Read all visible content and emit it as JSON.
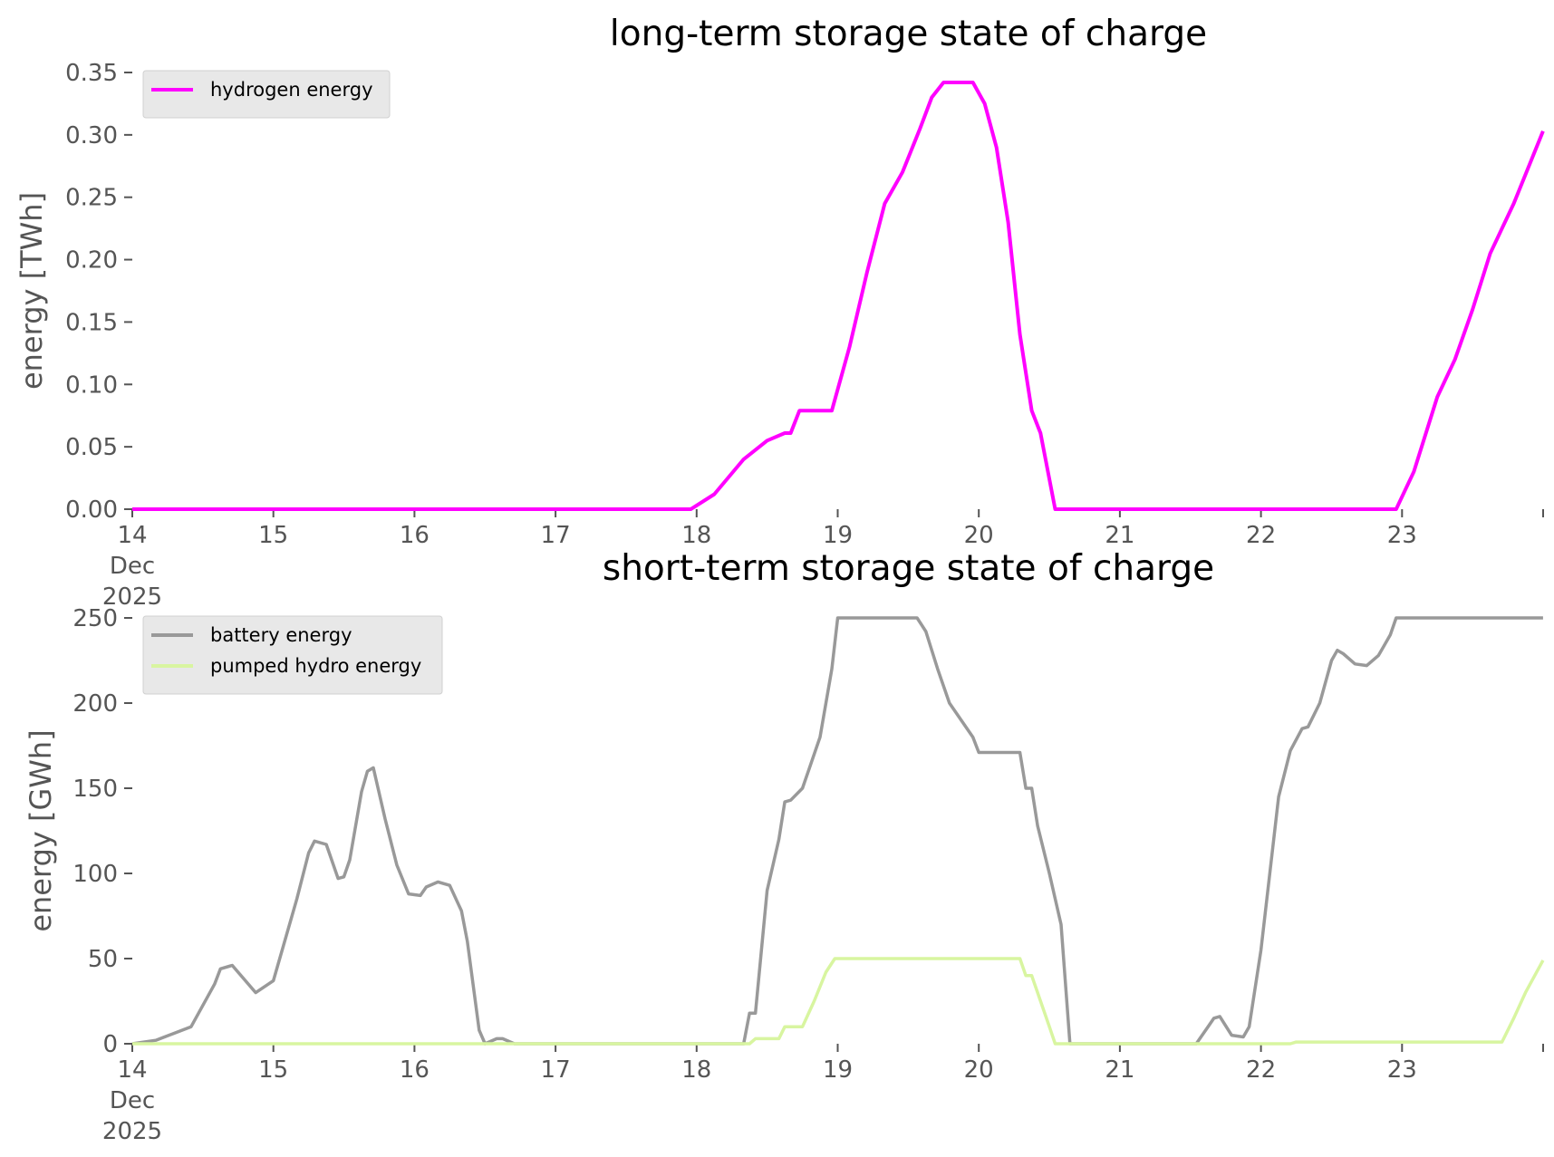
{
  "colors": {
    "hydrogen": "#ff00ff",
    "battery": "#999999",
    "pumped_hydro": "#d8f5a0",
    "axis": "#555555",
    "legend_bg": "#e8e8e8"
  },
  "chart_data": [
    {
      "type": "line",
      "title": "long-term storage state of charge",
      "ylabel": "energy [TWh]",
      "xlabel": "",
      "xlim": [
        "2025-12-14",
        "2025-12-24"
      ],
      "ylim": [
        0,
        0.35
      ],
      "grid": false,
      "legend_position": "top-left",
      "x_tick_labels": [
        "14",
        "15",
        "16",
        "17",
        "18",
        "19",
        "20",
        "21",
        "22",
        "23"
      ],
      "x_tick_sublabels": [
        "Dec",
        "2025"
      ],
      "y_tick_labels": [
        "0.00",
        "0.05",
        "0.10",
        "0.15",
        "0.20",
        "0.25",
        "0.30",
        "0.35"
      ],
      "y_ticks": [
        0,
        0.05,
        0.1,
        0.15,
        0.2,
        0.25,
        0.3,
        0.35
      ],
      "series": [
        {
          "name": "hydrogen energy",
          "color": "#ff00ff",
          "points": [
            [
              "2025-12-14 00:00",
              0
            ],
            [
              "2025-12-17 23:00",
              0
            ],
            [
              "2025-12-18 03:00",
              0.012
            ],
            [
              "2025-12-18 08:00",
              0.04
            ],
            [
              "2025-12-18 12:00",
              0.055
            ],
            [
              "2025-12-18 15:00",
              0.061
            ],
            [
              "2025-12-18 16:00",
              0.061
            ],
            [
              "2025-12-18 17:30",
              0.079
            ],
            [
              "2025-12-18 23:00",
              0.079
            ],
            [
              "2025-12-19 02:00",
              0.13
            ],
            [
              "2025-12-19 05:00",
              0.19
            ],
            [
              "2025-12-19 08:00",
              0.245
            ],
            [
              "2025-12-19 11:00",
              0.27
            ],
            [
              "2025-12-19 14:00",
              0.305
            ],
            [
              "2025-12-19 16:00",
              0.33
            ],
            [
              "2025-12-19 18:00",
              0.342
            ],
            [
              "2025-12-19 23:00",
              0.342
            ],
            [
              "2025-12-20 01:00",
              0.325
            ],
            [
              "2025-12-20 03:00",
              0.29
            ],
            [
              "2025-12-20 05:00",
              0.23
            ],
            [
              "2025-12-20 07:00",
              0.14
            ],
            [
              "2025-12-20 09:00",
              0.079
            ],
            [
              "2025-12-20 10:30",
              0.061
            ],
            [
              "2025-12-20 13:00",
              0
            ],
            [
              "2025-12-22 23:00",
              0
            ],
            [
              "2025-12-23 02:00",
              0.03
            ],
            [
              "2025-12-23 06:00",
              0.09
            ],
            [
              "2025-12-23 09:00",
              0.12
            ],
            [
              "2025-12-23 12:00",
              0.16
            ],
            [
              "2025-12-23 15:00",
              0.205
            ],
            [
              "2025-12-23 19:00",
              0.245
            ],
            [
              "2025-12-23 23:59",
              0.303
            ]
          ]
        }
      ]
    },
    {
      "type": "line",
      "title": "short-term storage state of charge",
      "ylabel": "energy [GWh]",
      "xlabel": "",
      "xlim": [
        "2025-12-14",
        "2025-12-24"
      ],
      "ylim": [
        0,
        250
      ],
      "grid": false,
      "legend_position": "top-left",
      "x_tick_labels": [
        "14",
        "15",
        "16",
        "17",
        "18",
        "19",
        "20",
        "21",
        "22",
        "23"
      ],
      "x_tick_sublabels": [
        "Dec",
        "2025"
      ],
      "y_tick_labels": [
        "0",
        "50",
        "100",
        "150",
        "200",
        "250"
      ],
      "y_ticks": [
        0,
        50,
        100,
        150,
        200,
        250
      ],
      "series": [
        {
          "name": "battery energy",
          "color": "#999999",
          "points": [
            [
              "2025-12-14 00:00",
              0
            ],
            [
              "2025-12-14 04:00",
              2
            ],
            [
              "2025-12-14 07:00",
              6
            ],
            [
              "2025-12-14 10:00",
              10
            ],
            [
              "2025-12-14 14:00",
              35
            ],
            [
              "2025-12-14 14:00",
              35
            ],
            [
              "2025-12-14 15:00",
              44
            ],
            [
              "2025-12-14 17:00",
              46
            ],
            [
              "2025-12-14 21:00",
              30
            ],
            [
              "2025-12-15 00:00",
              37
            ],
            [
              "2025-12-15 04:00",
              85
            ],
            [
              "2025-12-15 06:00",
              112
            ],
            [
              "2025-12-15 07:00",
              119
            ],
            [
              "2025-12-15 09:00",
              117
            ],
            [
              "2025-12-15 11:00",
              97
            ],
            [
              "2025-12-15 12:00",
              98
            ],
            [
              "2025-12-15 13:00",
              108
            ],
            [
              "2025-12-15 15:00",
              148
            ],
            [
              "2025-12-15 16:00",
              160
            ],
            [
              "2025-12-15 17:00",
              162
            ],
            [
              "2025-12-15 19:00",
              132
            ],
            [
              "2025-12-15 21:00",
              105
            ],
            [
              "2025-12-15 23:00",
              88
            ],
            [
              "2025-12-16 01:00",
              87
            ],
            [
              "2025-12-16 02:00",
              92
            ],
            [
              "2025-12-16 04:00",
              95
            ],
            [
              "2025-12-16 06:00",
              93
            ],
            [
              "2025-12-16 08:00",
              78
            ],
            [
              "2025-12-16 09:00",
              60
            ],
            [
              "2025-12-16 11:00",
              8
            ],
            [
              "2025-12-16 12:00",
              0
            ],
            [
              "2025-12-16 14:00",
              3
            ],
            [
              "2025-12-16 15:00",
              3
            ],
            [
              "2025-12-16 17:00",
              0
            ],
            [
              "2025-12-18 08:00",
              0
            ],
            [
              "2025-12-18 09:00",
              18
            ],
            [
              "2025-12-18 10:00",
              18
            ],
            [
              "2025-12-18 12:00",
              90
            ],
            [
              "2025-12-18 14:00",
              120
            ],
            [
              "2025-12-18 15:00",
              142
            ],
            [
              "2025-12-18 16:00",
              143
            ],
            [
              "2025-12-18 18:00",
              150
            ],
            [
              "2025-12-18 19:00",
              160
            ],
            [
              "2025-12-18 21:00",
              180
            ],
            [
              "2025-12-18 23:00",
              220
            ],
            [
              "2025-12-19 00:00",
              250
            ],
            [
              "2025-12-19 13:30",
              250
            ],
            [
              "2025-12-19 15:00",
              242
            ],
            [
              "2025-12-19 17:00",
              220
            ],
            [
              "2025-12-19 19:00",
              200
            ],
            [
              "2025-12-19 23:00",
              180
            ],
            [
              "2025-12-20 00:00",
              171
            ],
            [
              "2025-12-20 07:00",
              171
            ],
            [
              "2025-12-20 08:00",
              150
            ],
            [
              "2025-12-20 09:00",
              150
            ],
            [
              "2025-12-20 10:00",
              128
            ],
            [
              "2025-12-20 12:00",
              100
            ],
            [
              "2025-12-20 14:00",
              70
            ],
            [
              "2025-12-20 15:30",
              0
            ],
            [
              "2025-12-21 13:00",
              0
            ],
            [
              "2025-12-21 15:00",
              10
            ],
            [
              "2025-12-21 16:00",
              15
            ],
            [
              "2025-12-21 17:00",
              16
            ],
            [
              "2025-12-21 19:00",
              5
            ],
            [
              "2025-12-21 21:00",
              4
            ],
            [
              "2025-12-21 22:00",
              10
            ],
            [
              "2025-12-22 00:00",
              55
            ],
            [
              "2025-12-22 03:00",
              145
            ],
            [
              "2025-12-22 05:00",
              172
            ],
            [
              "2025-12-22 07:00",
              185
            ],
            [
              "2025-12-22 08:00",
              186
            ],
            [
              "2025-12-22 10:00",
              200
            ],
            [
              "2025-12-22 12:00",
              225
            ],
            [
              "2025-12-22 13:00",
              231
            ],
            [
              "2025-12-22 14:00",
              229
            ],
            [
              "2025-12-22 16:00",
              223
            ],
            [
              "2025-12-22 18:00",
              222
            ],
            [
              "2025-12-22 20:00",
              228
            ],
            [
              "2025-12-22 22:00",
              240
            ],
            [
              "2025-12-22 23:00",
              250
            ],
            [
              "2025-12-23 23:59",
              250
            ]
          ]
        },
        {
          "name": "pumped hydro energy",
          "color": "#d8f5a0",
          "points": [
            [
              "2025-12-14 00:00",
              0
            ],
            [
              "2025-12-18 09:00",
              0
            ],
            [
              "2025-12-18 10:00",
              3
            ],
            [
              "2025-12-18 14:00",
              3
            ],
            [
              "2025-12-18 15:00",
              10
            ],
            [
              "2025-12-18 18:00",
              10
            ],
            [
              "2025-12-18 20:00",
              25
            ],
            [
              "2025-12-18 22:00",
              42
            ],
            [
              "2025-12-18 23:30",
              50
            ],
            [
              "2025-12-20 07:00",
              50
            ],
            [
              "2025-12-20 08:00",
              40
            ],
            [
              "2025-12-20 09:00",
              40
            ],
            [
              "2025-12-20 12:00",
              10
            ],
            [
              "2025-12-20 13:00",
              0
            ],
            [
              "2025-12-22 05:00",
              0
            ],
            [
              "2025-12-22 06:00",
              1
            ],
            [
              "2025-12-23 17:00",
              1
            ],
            [
              "2025-12-23 19:00",
              15
            ],
            [
              "2025-12-23 21:00",
              30
            ],
            [
              "2025-12-23 23:59",
              49
            ]
          ]
        }
      ]
    }
  ]
}
